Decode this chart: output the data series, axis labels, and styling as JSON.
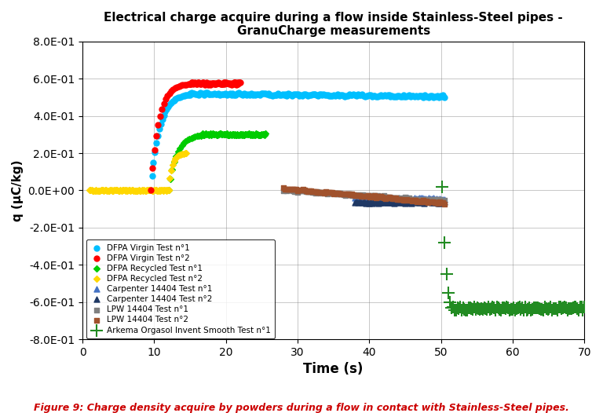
{
  "title": "Electrical charge acquire during a flow inside Stainless-Steel pipes -\nGranuCharge measurements",
  "xlabel": "Time (s)",
  "ylabel": "q (µC/kg)",
  "xlim": [
    0,
    70
  ],
  "ylim": [
    -0.8,
    0.8
  ],
  "yticks": [
    -0.8,
    -0.6,
    -0.4,
    -0.2,
    0.0,
    0.2,
    0.4,
    0.6,
    0.8
  ],
  "xticks": [
    0,
    10,
    20,
    30,
    40,
    50,
    60,
    70
  ],
  "caption": "Figure 9: Charge density acquire by powders during a flow in contact with Stainless-Steel pipes.",
  "series": [
    {
      "label": "DFPA Virgin Test n°1",
      "color": "#00BFFF",
      "marker": "o",
      "markersize": 5
    },
    {
      "label": "DFPA Virgin Test n°2",
      "color": "#FF0000",
      "marker": "o",
      "markersize": 5
    },
    {
      "label": "DFPA Recycled Test n°1",
      "color": "#00CC00",
      "marker": "D",
      "markersize": 4
    },
    {
      "label": "DFPA Recycled Test n°2",
      "color": "#FFD700",
      "marker": "D",
      "markersize": 4
    },
    {
      "label": "Carpenter 14404 Test n°1",
      "color": "#4472C4",
      "marker": "^",
      "markersize": 5
    },
    {
      "label": "Carpenter 14404 Test n°2",
      "color": "#1F3864",
      "marker": "^",
      "markersize": 5
    },
    {
      "label": "LPW 14404 Test n°1",
      "color": "#808080",
      "marker": "s",
      "markersize": 4
    },
    {
      "label": "LPW 14404 Test n°2",
      "color": "#A0522D",
      "marker": "s",
      "markersize": 4
    },
    {
      "label": "Arkema Orgasol Invent Smooth Test n°1",
      "color": "#228B22",
      "marker": "+",
      "markersize": 6
    }
  ]
}
